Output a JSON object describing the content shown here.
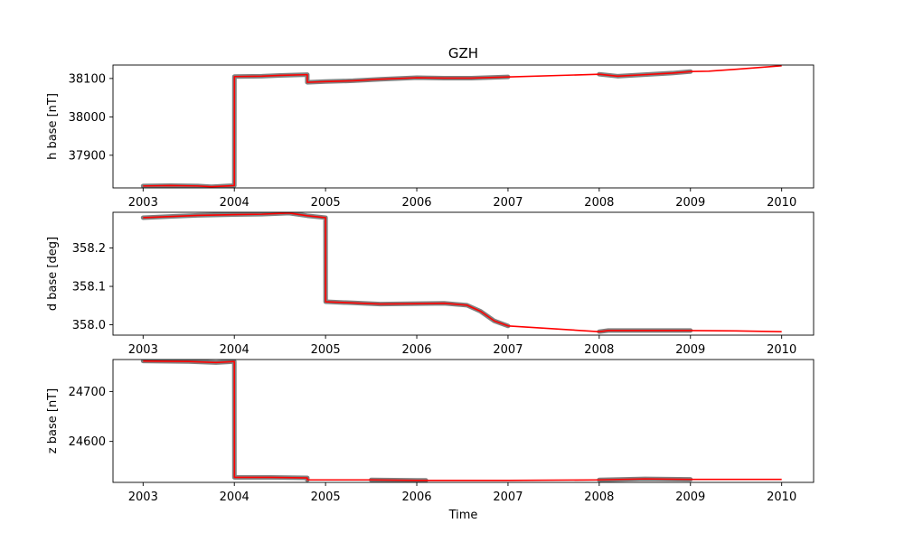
{
  "figure": {
    "title": "GZH",
    "xlabel": "Time"
  },
  "chart_data": [
    {
      "type": "line",
      "ylabel": "h base [nT]",
      "xlim": [
        2002.67,
        2010.35
      ],
      "ylim": [
        37815,
        38135
      ],
      "xticks": [
        2003,
        2004,
        2005,
        2006,
        2007,
        2008,
        2009,
        2010
      ],
      "yticks": [
        37900,
        38000,
        38100
      ],
      "series": [
        {
          "style": "measurements",
          "color": "#808080",
          "x": [
            2003.0,
            2003.3,
            2003.6,
            2003.75,
            2004.0,
            2004.001,
            2004.3,
            2004.5,
            2004.8,
            2004.8,
            2005.0,
            2005.3,
            2005.6,
            2006.0,
            2006.3,
            2006.6,
            2007.0,
            2008.0,
            2008.2,
            2008.5,
            2008.8,
            2009.0
          ],
          "y": [
            37820,
            37821,
            37820,
            37818,
            37821,
            38105,
            38106,
            38108,
            38110,
            38090,
            38092,
            38094,
            38098,
            38102,
            38101,
            38101,
            38104,
            38111,
            38106,
            38110,
            38114,
            38118
          ]
        },
        {
          "style": "baseline",
          "color": "#ff0000",
          "x": [
            2003.0,
            2003.3,
            2003.6,
            2003.75,
            2004.0,
            2004.001,
            2004.3,
            2004.5,
            2004.8,
            2004.8,
            2005.0,
            2005.3,
            2005.6,
            2006.0,
            2006.3,
            2006.6,
            2007.0,
            2008.0,
            2008.2,
            2008.5,
            2008.8,
            2009.0,
            2009.2,
            2009.5,
            2010.0
          ],
          "y": [
            37820,
            37821,
            37820,
            37818,
            37821,
            38105,
            38106,
            38108,
            38110,
            38090,
            38092,
            38094,
            38098,
            38102,
            38101,
            38101,
            38104,
            38111,
            38106,
            38110,
            38114,
            38118,
            38119,
            38124,
            38133
          ]
        }
      ]
    },
    {
      "type": "line",
      "ylabel": "d base [deg]",
      "xlim": [
        2002.67,
        2010.35
      ],
      "ylim": [
        357.973,
        358.293
      ],
      "xticks": [
        2003,
        2004,
        2005,
        2006,
        2007,
        2008,
        2009,
        2010
      ],
      "yticks": [
        358.0,
        358.1,
        358.2
      ],
      "series": [
        {
          "style": "measurements",
          "color": "#808080",
          "x": [
            2003.0,
            2003.3,
            2003.6,
            2004.0,
            2004.3,
            2004.6,
            2004.8,
            2005.0,
            2005.001,
            2005.3,
            2005.6,
            2006.0,
            2006.3,
            2006.55,
            2006.7,
            2006.85,
            2007.0,
            2008.0,
            2008.1,
            2008.5,
            2009.0
          ],
          "y": [
            358.279,
            358.282,
            358.285,
            358.287,
            358.288,
            358.291,
            358.284,
            358.279,
            358.06,
            358.057,
            358.054,
            358.055,
            358.056,
            358.051,
            358.035,
            358.01,
            357.997,
            357.982,
            357.985,
            357.985,
            357.985
          ]
        },
        {
          "style": "baseline",
          "color": "#ff0000",
          "x": [
            2003.0,
            2003.3,
            2003.6,
            2004.0,
            2004.3,
            2004.6,
            2004.8,
            2005.0,
            2005.001,
            2005.3,
            2005.6,
            2006.0,
            2006.3,
            2006.55,
            2006.7,
            2006.85,
            2007.0,
            2008.0,
            2008.1,
            2008.5,
            2009.0,
            2009.5,
            2010.0
          ],
          "y": [
            358.279,
            358.282,
            358.285,
            358.287,
            358.288,
            358.291,
            358.284,
            358.279,
            358.06,
            358.057,
            358.054,
            358.055,
            358.056,
            358.051,
            358.035,
            358.01,
            357.997,
            357.982,
            357.985,
            357.985,
            357.985,
            357.984,
            357.982
          ]
        }
      ]
    },
    {
      "type": "line",
      "ylabel": "z base [nT]",
      "xlim": [
        2002.67,
        2010.35
      ],
      "ylim": [
        24518,
        24764
      ],
      "xticks": [
        2003,
        2004,
        2005,
        2006,
        2007,
        2008,
        2009,
        2010
      ],
      "yticks": [
        24600,
        24700
      ],
      "series": [
        {
          "style": "measurements",
          "color": "#808080",
          "x": [
            2003.0,
            2003.5,
            2003.8,
            2004.0,
            2004.001,
            2004.4,
            2004.8,
            2004.8,
            2005.5,
            2006.0,
            2006.1,
            2007.0,
            2008.0,
            2008.5,
            2009.0
          ],
          "y": [
            24761,
            24760,
            24758,
            24760,
            24528,
            24528,
            24527,
            24523,
            24523,
            24522,
            24522,
            24522,
            24523,
            24525,
            24524
          ]
        },
        {
          "style": "baseline",
          "color": "#ff0000",
          "x": [
            2003.0,
            2003.5,
            2003.8,
            2004.0,
            2004.001,
            2004.4,
            2004.8,
            2004.8,
            2005.5,
            2006.0,
            2006.1,
            2007.0,
            2008.0,
            2008.5,
            2009.0,
            2009.5,
            2010.0
          ],
          "y": [
            24761,
            24760,
            24758,
            24760,
            24528,
            24528,
            24527,
            24523,
            24523,
            24522,
            24522,
            24522,
            24523,
            24525,
            24524,
            24524,
            24524
          ]
        }
      ]
    }
  ]
}
